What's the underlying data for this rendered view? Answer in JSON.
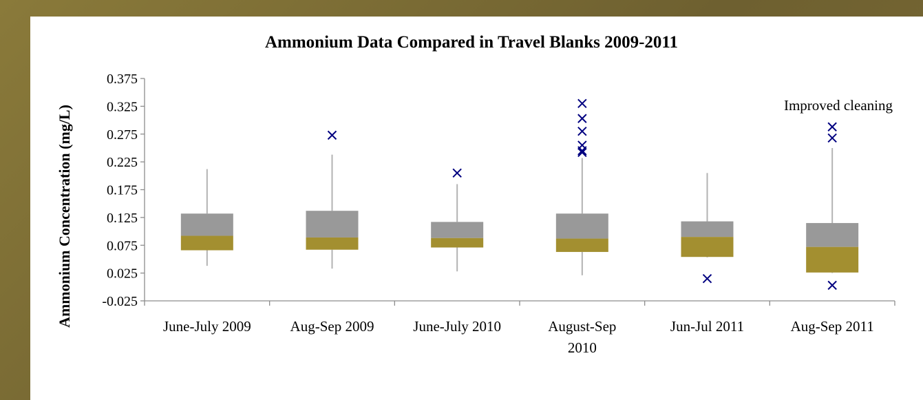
{
  "chart_data": {
    "type": "box",
    "title": "Ammonium Data Compared in Travel Blanks 2009-2011",
    "xlabel": "",
    "ylabel": "Ammonium Concentration (mg/L)",
    "ylim": [
      -0.025,
      0.375
    ],
    "yticks": [
      "-0.025",
      "0.025",
      "0.075",
      "0.125",
      "0.175",
      "0.225",
      "0.275",
      "0.325",
      "0.375"
    ],
    "annotation": "Improved cleaning",
    "grid": false,
    "legend": "none",
    "colors": {
      "upper_box": "#999999",
      "lower_box": "#a38f30",
      "whisker": "#b3b3b3",
      "outlier": "#000080",
      "axis": "#8c8c8c"
    },
    "categories": [
      [
        "June-July 2009"
      ],
      [
        "Aug-Sep 2009"
      ],
      [
        "June-July 2010"
      ],
      [
        "August-Sep",
        "2010"
      ],
      [
        "Jun-Jul 2011"
      ],
      [
        "Aug-Sep 2011"
      ]
    ],
    "boxes": [
      {
        "min": 0.038,
        "q1": 0.066,
        "median": 0.092,
        "q3": 0.132,
        "max": 0.212,
        "outliers": []
      },
      {
        "min": 0.033,
        "q1": 0.067,
        "median": 0.089,
        "q3": 0.137,
        "max": 0.238,
        "outliers": [
          0.273
        ]
      },
      {
        "min": 0.028,
        "q1": 0.071,
        "median": 0.088,
        "q3": 0.117,
        "max": 0.185,
        "outliers": [
          0.205
        ]
      },
      {
        "min": 0.021,
        "q1": 0.063,
        "median": 0.087,
        "q3": 0.132,
        "max": 0.232,
        "outliers": [
          0.242,
          0.245,
          0.255,
          0.28,
          0.303,
          0.33
        ]
      },
      {
        "min": 0.053,
        "q1": 0.054,
        "median": 0.09,
        "q3": 0.118,
        "max": 0.205,
        "outliers": [
          0.015
        ]
      },
      {
        "min": 0.025,
        "q1": 0.026,
        "median": 0.072,
        "q3": 0.115,
        "max": 0.25,
        "outliers": [
          0.003,
          0.268,
          0.288
        ]
      }
    ]
  }
}
